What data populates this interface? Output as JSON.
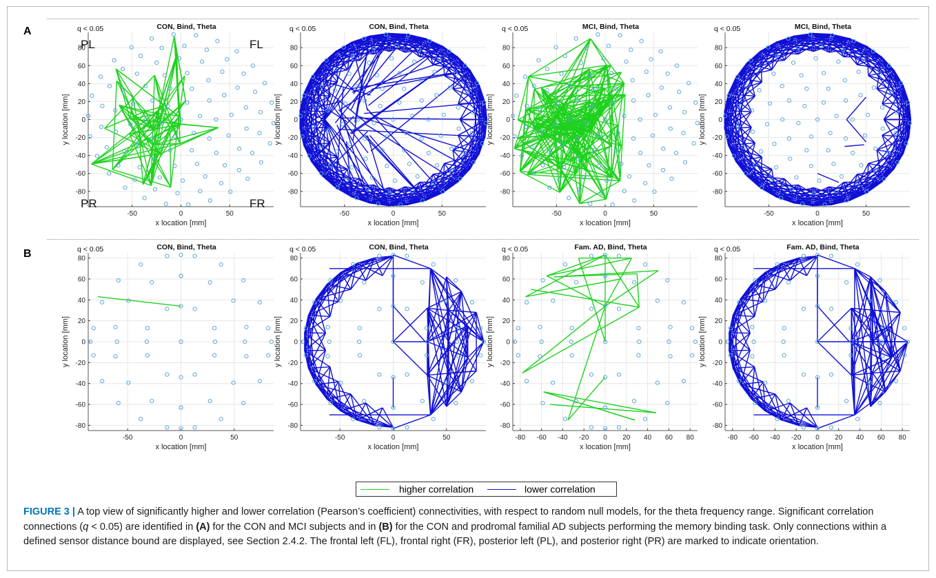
{
  "colors": {
    "higher": "#1fd11f",
    "lower": "#1010d6",
    "node": "#5aa6dc",
    "grid": "#e6e6e6"
  },
  "panels": {
    "A": {
      "letter": "A"
    },
    "B": {
      "letter": "B"
    }
  },
  "orientation_labels": {
    "pl": "PL",
    "fl": "FL",
    "pr": "PR",
    "fr": "FR"
  },
  "plots": [
    {
      "id": "A1",
      "title": "CON, Bind, Theta",
      "q": "q < 0.05",
      "xlabel": "x location [mm]",
      "ylabel": "y location [mm]",
      "xticks": [
        -50,
        0,
        50
      ],
      "yticks": [
        -80,
        -60,
        -40,
        -20,
        0,
        20,
        40,
        60,
        80
      ],
      "xlim": [
        -95,
        95
      ],
      "ylim": [
        -97,
        97
      ],
      "layout": "A",
      "pattern": "green-star"
    },
    {
      "id": "A2",
      "title": "CON, Bind, Theta",
      "q": "q < 0.05",
      "xlabel": "x location [mm]",
      "ylabel": "y location [mm]",
      "xticks": [
        -50,
        0,
        50
      ],
      "yticks": [
        -80,
        -60,
        -40,
        -20,
        0,
        20,
        40,
        60,
        80
      ],
      "xlim": [
        -95,
        95
      ],
      "ylim": [
        -97,
        97
      ],
      "layout": "A",
      "pattern": "blue-ring-left-hub"
    },
    {
      "id": "A3",
      "title": "MCI, Bind, Theta",
      "q": "q < 0.05",
      "xlabel": "x location [mm]",
      "ylabel": "y location [mm]",
      "xticks": [
        -50,
        0,
        50
      ],
      "yticks": [
        -80,
        -60,
        -40,
        -20,
        0,
        20,
        40,
        60,
        80
      ],
      "xlim": [
        -95,
        95
      ],
      "ylim": [
        -97,
        97
      ],
      "layout": "A",
      "pattern": "green-dense"
    },
    {
      "id": "A4",
      "title": "MCI, Bind, Theta",
      "q": "q < 0.05",
      "xlabel": "x location [mm]",
      "ylabel": "y location [mm]",
      "xticks": [
        -50,
        0,
        50
      ],
      "yticks": [
        -80,
        -60,
        -40,
        -20,
        0,
        20,
        40,
        60,
        80
      ],
      "xlim": [
        -95,
        95
      ],
      "ylim": [
        -97,
        97
      ],
      "layout": "A",
      "pattern": "blue-ring"
    },
    {
      "id": "B1",
      "title": "CON, Bind, Theta",
      "q": "q < 0.05",
      "xlabel": "x location [mm]",
      "ylabel": "y location [mm]",
      "xticks": [
        -50,
        0,
        50
      ],
      "yticks": [
        -80,
        -60,
        -40,
        -20,
        0,
        20,
        40,
        60,
        80
      ],
      "xlim": [
        -87,
        87
      ],
      "ylim": [
        -85,
        85
      ],
      "layout": "B",
      "pattern": "single-green"
    },
    {
      "id": "B2",
      "title": "CON, Bind, Theta",
      "q": "q < 0.05",
      "xlabel": "x location [mm]",
      "ylabel": "y location [mm]",
      "xticks": [
        -50,
        0,
        50
      ],
      "yticks": [
        -80,
        -60,
        -40,
        -20,
        0,
        20,
        40,
        60,
        80
      ],
      "xlim": [
        -87,
        87
      ],
      "ylim": [
        -85,
        85
      ],
      "layout": "B",
      "pattern": "blue-ring-right-mesh"
    },
    {
      "id": "B3",
      "title": "Fam. AD, Bind, Theta",
      "q": "q < 0.05",
      "xlabel": "x location [mm]",
      "ylabel": "y location [mm]",
      "xticks": [
        -80,
        -60,
        -40,
        -20,
        0,
        20,
        40,
        60,
        80
      ],
      "yticks": [
        -80,
        -60,
        -40,
        -20,
        0,
        20,
        40,
        60,
        80
      ],
      "xlim": [
        -87,
        87
      ],
      "ylim": [
        -85,
        85
      ],
      "layout": "B",
      "pattern": "green-sparse"
    },
    {
      "id": "B4",
      "title": "Fam. AD, Bind, Theta",
      "q": "q < 0.05",
      "xlabel": "x location [mm]",
      "ylabel": "y location [mm]",
      "xticks": [
        -80,
        -60,
        -40,
        -20,
        0,
        20,
        40,
        60,
        80
      ],
      "yticks": [
        -80,
        -60,
        -40,
        -20,
        0,
        20,
        40,
        60,
        80
      ],
      "xlim": [
        -87,
        87
      ],
      "ylim": [
        -85,
        85
      ],
      "layout": "B",
      "pattern": "blue-ring-right-mesh"
    }
  ],
  "legend": {
    "higher": "higher correlation",
    "lower": "lower correlation"
  },
  "caption": {
    "label": "FIGURE 3 |",
    "t1": " A top view of significantly higher and lower correlation (Pearson’s coefficient) connectivities, with respect to random null models, for the theta frequency range. Significant correlation connections (",
    "q": "q",
    "t2": " < 0.05) are identified in ",
    "a": "(A)",
    "t3": " for the CON and MCI subjects and in ",
    "b": "(B)",
    "t4": " for the CON and prodromal familial AD subjects performing the memory binding task. Only connections within a defined sensor distance bound are displayed, see Section 2.4.2. The frontal left (FL), frontal right (FR), posterior left (PL), and posterior right (PR) are marked to indicate orientation."
  }
}
